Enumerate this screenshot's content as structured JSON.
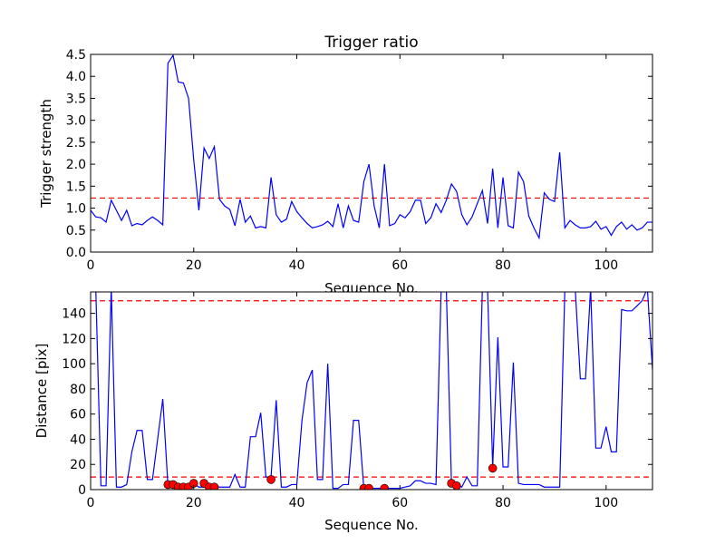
{
  "chart_data": [
    {
      "type": "line",
      "title": "Trigger ratio",
      "xlabel": "Sequence No.",
      "ylabel": "Trigger strength",
      "xlim": [
        0,
        109
      ],
      "ylim": [
        0,
        4.5
      ],
      "xticks": [
        "0",
        "20",
        "40",
        "60",
        "80",
        "100"
      ],
      "yticks": [
        "0.0",
        "0.5",
        "1.0",
        "1.5",
        "2.0",
        "2.5",
        "3.0",
        "3.5",
        "4.0",
        "4.5"
      ],
      "grid": false,
      "series": [
        {
          "color": "#0000ff",
          "x": [
            0,
            1,
            2,
            3,
            4,
            5,
            6,
            7,
            8,
            9,
            10,
            11,
            12,
            13,
            14,
            15,
            16,
            17,
            18,
            19,
            20,
            21,
            22,
            23,
            24,
            25,
            26,
            27,
            28,
            29,
            30,
            31,
            32,
            33,
            34,
            35,
            36,
            37,
            38,
            39,
            40,
            41,
            42,
            43,
            44,
            45,
            46,
            47,
            48,
            49,
            50,
            51,
            52,
            53,
            54,
            55,
            56,
            57,
            58,
            59,
            60,
            61,
            62,
            63,
            64,
            65,
            66,
            67,
            68,
            69,
            70,
            71,
            72,
            73,
            74,
            75,
            76,
            77,
            78,
            79,
            80,
            81,
            82,
            83,
            84,
            85,
            86,
            87,
            88,
            89,
            90,
            91,
            92,
            93,
            94,
            95,
            96,
            97,
            98,
            99,
            100,
            101,
            102,
            103,
            104,
            105,
            106,
            107,
            108,
            109
          ],
          "values": [
            0.95,
            0.8,
            0.78,
            0.68,
            1.18,
            0.95,
            0.72,
            0.95,
            0.6,
            0.65,
            0.62,
            0.72,
            0.8,
            0.72,
            0.62,
            4.3,
            4.48,
            3.87,
            3.85,
            3.5,
            2.1,
            0.95,
            2.37,
            2.13,
            2.4,
            1.2,
            1.05,
            0.97,
            0.6,
            1.2,
            0.68,
            0.82,
            0.55,
            0.58,
            0.55,
            1.7,
            0.85,
            0.68,
            0.75,
            1.15,
            0.92,
            0.78,
            0.65,
            0.55,
            0.58,
            0.62,
            0.7,
            0.58,
            1.1,
            0.55,
            1.05,
            0.72,
            0.68,
            1.6,
            2.0,
            1.05,
            0.55,
            2.0,
            0.6,
            0.65,
            0.85,
            0.78,
            0.92,
            1.18,
            1.18,
            0.65,
            0.78,
            1.1,
            0.9,
            1.18,
            1.55,
            1.38,
            0.85,
            0.62,
            0.8,
            1.1,
            1.4,
            0.65,
            1.9,
            0.55,
            1.7,
            0.6,
            0.55,
            1.82,
            1.6,
            0.82,
            0.55,
            0.32,
            1.35,
            1.2,
            1.15,
            2.27,
            0.55,
            0.72,
            0.62,
            0.55,
            0.55,
            0.58,
            0.7,
            0.52,
            0.58,
            0.38,
            0.58,
            0.68,
            0.52,
            0.62,
            0.5,
            0.55,
            0.68,
            0.68
          ]
        }
      ],
      "reference_lines": [
        {
          "y": 1.23,
          "color": "#ff0000",
          "style": "dashed"
        }
      ]
    },
    {
      "type": "line",
      "title": "",
      "xlabel": "Sequence No.",
      "ylabel": "Distance [pix]",
      "xlim": [
        0,
        109
      ],
      "ylim": [
        0,
        157
      ],
      "xticks": [
        "0",
        "20",
        "40",
        "60",
        "80",
        "100"
      ],
      "yticks": [
        "0",
        "20",
        "40",
        "60",
        "80",
        "100",
        "120",
        "140"
      ],
      "grid": false,
      "series": [
        {
          "color": "#0000ff",
          "x": [
            0,
            1,
            2,
            3,
            4,
            5,
            6,
            7,
            8,
            9,
            10,
            11,
            12,
            13,
            14,
            15,
            16,
            17,
            18,
            19,
            20,
            21,
            22,
            23,
            24,
            25,
            26,
            27,
            28,
            29,
            30,
            31,
            32,
            33,
            34,
            35,
            36,
            37,
            38,
            39,
            40,
            41,
            42,
            43,
            44,
            45,
            46,
            47,
            48,
            49,
            50,
            51,
            52,
            53,
            54,
            55,
            56,
            57,
            58,
            59,
            60,
            61,
            62,
            63,
            64,
            65,
            66,
            67,
            68,
            69,
            70,
            71,
            72,
            73,
            74,
            75,
            76,
            77,
            78,
            79,
            80,
            81,
            82,
            83,
            84,
            85,
            86,
            87,
            88,
            89,
            90,
            91,
            92,
            93,
            94,
            95,
            96,
            97,
            98,
            99,
            100,
            101,
            102,
            103,
            104,
            105,
            106,
            107,
            108,
            109
          ],
          "values": [
            160,
            160,
            3,
            3,
            160,
            2,
            2,
            4,
            30,
            47,
            47,
            8,
            8,
            40,
            72,
            3,
            4,
            2,
            2,
            2,
            5,
            2,
            2,
            2,
            2,
            2,
            2,
            2,
            12,
            2,
            2,
            42,
            42,
            61,
            10,
            10,
            71,
            2,
            2,
            4,
            4,
            55,
            85,
            95,
            8,
            8,
            100,
            1,
            1,
            4,
            4,
            55,
            55,
            1,
            1,
            1,
            1,
            1,
            1,
            1,
            1,
            2,
            3,
            7,
            7,
            5,
            5,
            4,
            160,
            160,
            5,
            5,
            2,
            10,
            3,
            3,
            160,
            160,
            18,
            121,
            18,
            18,
            101,
            5,
            4,
            4,
            4,
            4,
            2,
            2,
            2,
            2,
            160,
            160,
            160,
            88,
            88,
            160,
            33,
            33,
            50,
            30,
            30,
            143,
            142,
            142,
            146,
            150,
            160,
            95
          ]
        }
      ],
      "reference_lines": [
        {
          "y": 150,
          "color": "#ff0000",
          "style": "dashed"
        },
        {
          "y": 10,
          "color": "#ff0000",
          "style": "dashed"
        }
      ],
      "markers": {
        "color": "#ff0000",
        "x": [
          15,
          16,
          17,
          18,
          19,
          20,
          22,
          23,
          24,
          35,
          53,
          54,
          57,
          70,
          71,
          78
        ],
        "values": [
          4,
          4,
          2,
          2,
          2,
          5,
          5,
          2,
          2,
          8,
          1,
          1,
          1,
          5,
          3,
          17
        ]
      }
    }
  ]
}
